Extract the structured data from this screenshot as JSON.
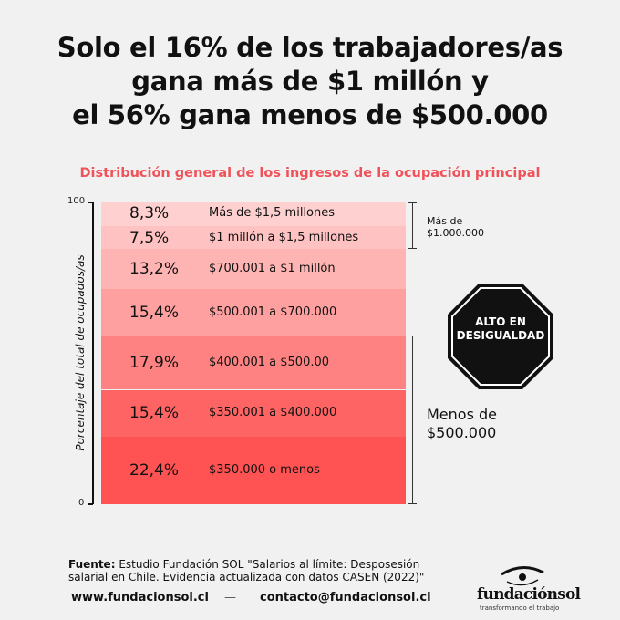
{
  "title_lines": [
    "Solo el 16% de los trabajadores/as",
    "gana más de $1 millón y",
    "el 56% gana menos de $500.000"
  ],
  "chart_data": {
    "type": "bar",
    "stacked": true,
    "title": "Distribución general de los ingresos de la ocupación principal",
    "ylabel": "Porcentaje del total de ocupados/as",
    "ylim": [
      0,
      100
    ],
    "yticks": [
      "0",
      "100"
    ],
    "segments": [
      {
        "label": "$350.000 o menos",
        "value": 22.4,
        "value_label": "22,4%",
        "color": "#ff5252"
      },
      {
        "label": "$350.001 a $400.000",
        "value": 15.4,
        "value_label": "15,4%",
        "color": "#ff6464"
      },
      {
        "label": "$400.001 a $500.00",
        "value": 17.9,
        "value_label": "17,9%",
        "color": "#ff8282"
      },
      {
        "label": "$500.001 a $700.000",
        "value": 15.4,
        "value_label": "15,4%",
        "color": "#ffa0a0"
      },
      {
        "label": "$700.001 a $1 millón",
        "value": 13.2,
        "value_label": "13,2%",
        "color": "#ffb4b4"
      },
      {
        "label": "$1 millón a $1,5 millones",
        "value": 7.5,
        "value_label": "7,5%",
        "color": "#ffc2c2"
      },
      {
        "label": "Más de $1,5 millones",
        "value": 8.3,
        "value_label": "8,3%",
        "color": "#ffd0d0"
      }
    ],
    "annotations": {
      "upper": "Más de $1.000.000",
      "upper_lines": [
        "Más de",
        "$1.000.000"
      ],
      "lower_lines": [
        "Menos de",
        "$500.000"
      ]
    }
  },
  "stop_sign": [
    "ALTO EN",
    "DESIGUALDAD"
  ],
  "footer": {
    "source_label": "Fuente:",
    "source_text": " Estudio Fundación SOL \"Salarios al límite: Desposesión salarial en Chile. Evidencia actualizada con datos CASEN (2022)\"",
    "website": "www.fundacionsol.cl",
    "separator": "—",
    "email": "contacto@fundacionsol.cl",
    "logo_name": "fundaciónsol",
    "logo_tagline": "transformando el trabajo"
  }
}
